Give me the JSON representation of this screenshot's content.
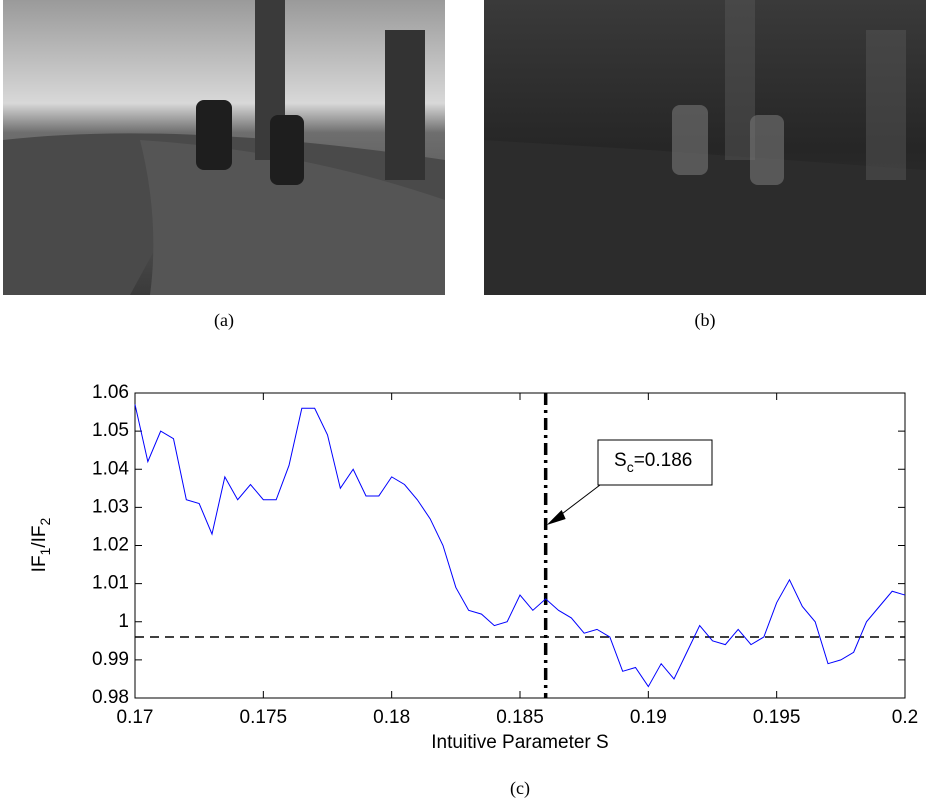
{
  "figure": {
    "captions": [
      "(a)",
      "(b)",
      "(c)"
    ]
  },
  "chart_data": {
    "type": "line",
    "x_label": "Intuitive Parameter S",
    "y_label_parts": [
      "IF",
      "1",
      "/IF",
      "2"
    ],
    "annotation_parts": [
      "S",
      "c",
      "=0.186"
    ],
    "vline_x": 0.186,
    "hline_y": 0.996,
    "x": [
      0.17,
      0.1705,
      0.171,
      0.1715,
      0.172,
      0.1725,
      0.173,
      0.1735,
      0.174,
      0.1745,
      0.175,
      0.1755,
      0.176,
      0.1765,
      0.177,
      0.1775,
      0.178,
      0.1785,
      0.179,
      0.1795,
      0.18,
      0.1805,
      0.181,
      0.1815,
      0.182,
      0.1825,
      0.183,
      0.1835,
      0.184,
      0.1845,
      0.185,
      0.1855,
      0.186,
      0.1865,
      0.187,
      0.1875,
      0.188,
      0.1885,
      0.189,
      0.1895,
      0.19,
      0.1905,
      0.191,
      0.1915,
      0.192,
      0.1925,
      0.193,
      0.1935,
      0.194,
      0.1945,
      0.195,
      0.1955,
      0.196,
      0.1965,
      0.197,
      0.1975,
      0.198,
      0.1985,
      0.199,
      0.1995,
      0.2
    ],
    "series": [
      {
        "color": "#0000ff",
        "values": [
          1.057,
          1.042,
          1.05,
          1.048,
          1.032,
          1.031,
          1.023,
          1.038,
          1.032,
          1.036,
          1.032,
          1.032,
          1.041,
          1.056,
          1.056,
          1.049,
          1.035,
          1.04,
          1.033,
          1.033,
          1.038,
          1.036,
          1.032,
          1.027,
          1.02,
          1.009,
          1.003,
          1.002,
          0.999,
          1.0,
          1.007,
          1.003,
          1.006,
          1.003,
          1.001,
          0.997,
          0.998,
          0.996,
          0.987,
          0.988,
          0.983,
          0.989,
          0.985,
          0.992,
          0.999,
          0.995,
          0.994,
          0.998,
          0.994,
          0.996,
          1.005,
          1.011,
          1.004,
          1.0,
          0.989,
          0.99,
          0.992,
          1.0,
          1.004,
          1.008,
          1.007
        ]
      }
    ],
    "xlim": [
      0.17,
      0.2
    ],
    "ylim": [
      0.98,
      1.06
    ],
    "xticks": [
      0.17,
      0.175,
      0.18,
      0.185,
      0.19,
      0.195,
      0.2
    ],
    "yticks": [
      0.98,
      0.99,
      1,
      1.01,
      1.02,
      1.03,
      1.04,
      1.05,
      1.06
    ]
  }
}
